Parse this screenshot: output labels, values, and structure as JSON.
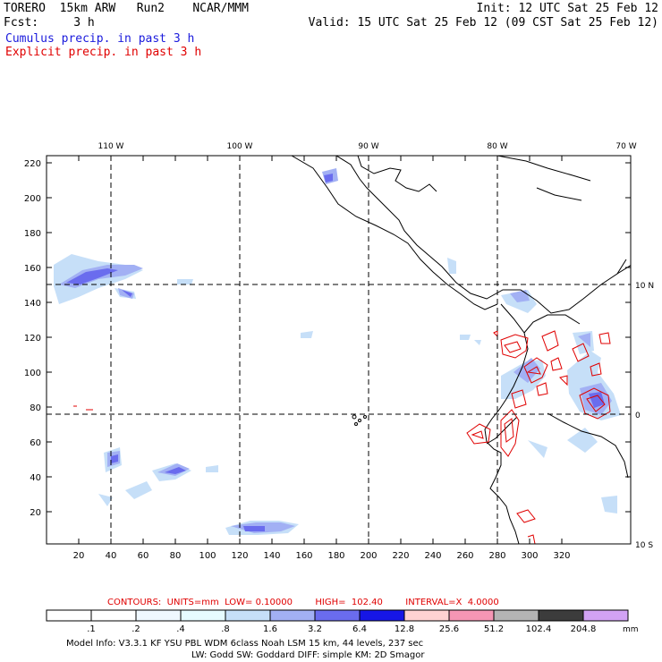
{
  "header": {
    "line1_left": "TORERO  15km ARW   Run2    NCAR/MMM",
    "line1_right": "Init: 12 UTC Sat 25 Feb 12",
    "line2_left": "Fcst:     3 h",
    "line2_right": "Valid: 15 UTC Sat 25 Feb 12 (09 CST Sat 25 Feb 12)",
    "cumulus_label": "Cumulus precip. in past 3 h",
    "explicit_label": "Explicit precip. in past 3 h"
  },
  "colors": {
    "cumulus_label": "#1a1adc",
    "explicit_label": "#e00000",
    "contour": "#e00000",
    "coast": "#000000",
    "grid": "#000000"
  },
  "map": {
    "lon_labels": [
      "110 W",
      "100 W",
      "90 W",
      "80 W",
      "70 W"
    ],
    "lat_labels": [
      "10 N",
      "0",
      "10 S"
    ],
    "x_ticks": [
      "20",
      "40",
      "60",
      "80",
      "100",
      "120",
      "140",
      "160",
      "180",
      "200",
      "220",
      "240",
      "260",
      "280",
      "300",
      "320"
    ],
    "y_ticks": [
      "20",
      "40",
      "60",
      "80",
      "100",
      "120",
      "140",
      "160",
      "180",
      "200",
      "220"
    ]
  },
  "footer": {
    "contour_info": "CONTOURS:  UNITS=mm  LOW= 0.10000        HIGH=  102.40        INTERVAL=X  4.0000",
    "colorbar_labels": [
      ".1",
      ".2",
      ".4",
      ".8",
      "1.6",
      "3.2",
      "6.4",
      "12.8",
      "25.6",
      "51.2",
      "102.4",
      "204.8"
    ],
    "colorbar_colors": [
      "#ffffff",
      "#ffffff",
      "#f0f8ff",
      "#e6fbff",
      "#c6dff8",
      "#a2b0f4",
      "#6a6cee",
      "#1616e6",
      "#ffd2d2",
      "#f596b4",
      "#b4b4b4",
      "#3c3c3c",
      "#d2a2f4"
    ],
    "units": "mm",
    "model_info_1": "Model Info: V3.3.1    KF      YSU PBL  WDM 6class  Noah LSM  15 km,    44 levels,  237 sec",
    "model_info_2": "LW: Godd SW: Goddard DIFF: simple KM: 2D Smagor"
  }
}
